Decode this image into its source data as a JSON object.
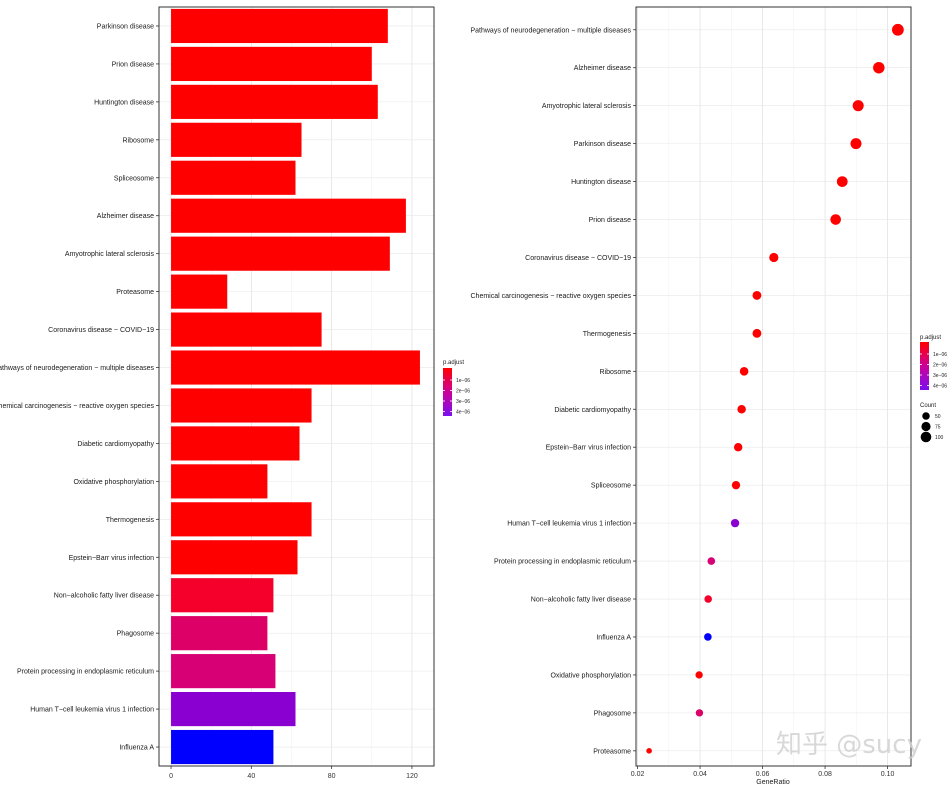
{
  "chart_data": [
    {
      "type": "bar",
      "orientation": "horizontal",
      "categories": [
        "Parkinson disease",
        "Prion disease",
        "Huntington disease",
        "Ribosome",
        "Spliceosome",
        "Alzheimer disease",
        "Amyotrophic lateral sclerosis",
        "Proteasome",
        "Coronavirus disease − COVID−19",
        "Pathways of neurodegeneration − multiple diseases",
        "Chemical carcinogenesis − reactive oxygen species",
        "Diabetic cardiomyopathy",
        "Oxidative phosphorylation",
        "Thermogenesis",
        "Epstein−Barr virus infection",
        "Non−alcoholic fatty liver disease",
        "Phagosome",
        "Protein processing in endoplasmic reticulum",
        "Human T−cell leukemia virus 1 infection",
        "Influenza A"
      ],
      "values": [
        108,
        100,
        103,
        65,
        62,
        117,
        109,
        28,
        75,
        124,
        70,
        64,
        48,
        70,
        63,
        51,
        48,
        52,
        62,
        51
      ],
      "colors": [
        "#ff0000",
        "#ff0000",
        "#ff0000",
        "#ff0000",
        "#ff0000",
        "#ff0000",
        "#ff0000",
        "#ff0000",
        "#ff0000",
        "#ff0000",
        "#ff0000",
        "#ff0000",
        "#ff0000",
        "#ff0000",
        "#ff0000",
        "#f5002a",
        "#dd0066",
        "#d70075",
        "#8a00d0",
        "#0000ff"
      ],
      "xlim": [
        -6,
        131
      ],
      "xticks": [
        0,
        40,
        80,
        120
      ],
      "xtick_labels": [
        "0",
        "40",
        "80",
        "120"
      ],
      "grid": true,
      "legend": {
        "title": "p.adjust",
        "labels": [
          "1e−06",
          "2e−06",
          "3e−06",
          "4e−06"
        ],
        "gradient": [
          "#ff0000",
          "#cc0099",
          "#7a10f0"
        ],
        "placement": "right"
      }
    },
    {
      "type": "scatter",
      "categories": [
        "Pathways of neurodegeneration − multiple diseases",
        "Alzheimer disease",
        "Amyotrophic lateral sclerosis",
        "Parkinson disease",
        "Huntington disease",
        "Prion disease",
        "Coronavirus disease − COVID−19",
        "Chemical carcinogenesis − reactive oxygen species",
        "Thermogenesis",
        "Ribosome",
        "Diabetic cardiomyopathy",
        "Epstein−Barr virus infection",
        "Spliceosome",
        "Human T−cell leukemia virus 1 infection",
        "Protein processing in endoplasmic reticulum",
        "Non−alcoholic fatty liver disease",
        "Influenza A",
        "Oxidative phosphorylation",
        "Phagosome",
        "Proteasome"
      ],
      "x": [
        0.1033,
        0.0972,
        0.0906,
        0.0899,
        0.0855,
        0.0834,
        0.0636,
        0.0582,
        0.0582,
        0.0541,
        0.0533,
        0.0522,
        0.0515,
        0.0512,
        0.0436,
        0.0426,
        0.0425,
        0.0397,
        0.0398,
        0.0237
      ],
      "count": [
        124,
        117,
        109,
        108,
        103,
        100,
        75,
        70,
        70,
        65,
        64,
        63,
        62,
        62,
        52,
        51,
        51,
        48,
        48,
        28
      ],
      "colors": [
        "#ff0000",
        "#ff0000",
        "#ff0000",
        "#ff0000",
        "#ff0000",
        "#ff0000",
        "#ff0000",
        "#ff0000",
        "#ff0000",
        "#ff0000",
        "#ff0000",
        "#ff0000",
        "#ff0000",
        "#8a00d0",
        "#d70075",
        "#f5002a",
        "#0000ff",
        "#ff0000",
        "#dd0066",
        "#ff0000"
      ],
      "xlabel": "GeneRatio",
      "xlim": [
        0.0195,
        0.1075
      ],
      "xticks": [
        0.02,
        0.04,
        0.06,
        0.08,
        0.1
      ],
      "xtick_labels": [
        "0.02",
        "0.04",
        "0.06",
        "0.08",
        "0.10"
      ],
      "grid": true,
      "legend": {
        "title": "p.adjust",
        "labels": [
          "1e−06",
          "2e−06",
          "3e−06",
          "4e−06"
        ],
        "gradient": [
          "#ff0000",
          "#cc0099",
          "#7a10f0"
        ],
        "placement": "right",
        "size_title": "Count",
        "size_values": [
          50,
          75,
          100
        ],
        "size_labels": [
          "50",
          "75",
          "100"
        ]
      }
    }
  ],
  "watermark": "知乎 @sucy"
}
